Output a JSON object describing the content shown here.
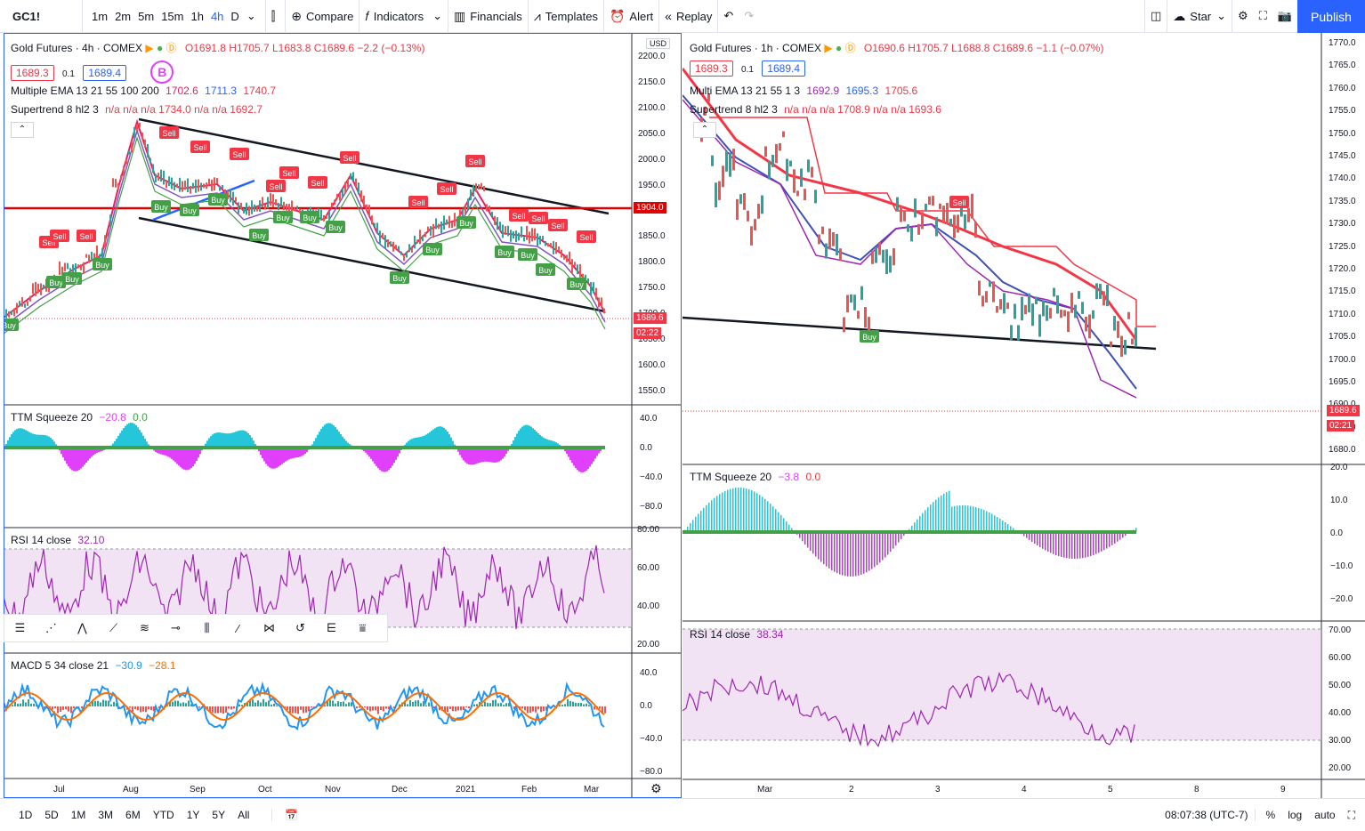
{
  "topbar": {
    "symbol": "GC1!",
    "timeframes": [
      "1m",
      "2m",
      "5m",
      "15m",
      "1h",
      "4h",
      "D"
    ],
    "active_timeframe": "4h",
    "compare_label": "Compare",
    "indicators_label": "Indicators",
    "financials_label": "Financials",
    "templates_label": "Templates",
    "alert_label": "Alert",
    "replay_label": "Replay",
    "star_label": "Star",
    "publish_label": "Publish"
  },
  "left_chart": {
    "title": "Gold Futures · 4h · COMEX",
    "ohlc": "O1691.8 H1705.7 L1683.8 C1689.6 −2.2 (−0.13%)",
    "bid": "1689.3",
    "spread": "0.1",
    "ask": "1689.4",
    "ema_label": "Multiple EMA 13 21 55 100 200",
    "ema_values": [
      "1702.6",
      "1711.3",
      "1740.7"
    ],
    "supertrend_label": "Supertrend 8 hl2 3",
    "supertrend_values": "n/a n/a n/a 1734.0 n/a n/a 1692.7",
    "currency": "USD",
    "price_axis": [
      "2200.0",
      "2150.0",
      "2100.0",
      "2050.0",
      "2000.0",
      "1950.0",
      "1900.0",
      "1850.0",
      "1800.0",
      "1750.0",
      "1700.0",
      "1650.0",
      "1600.0",
      "1550.0"
    ],
    "hline_label": "1904.0",
    "last_price": "1689.6",
    "countdown": "02:22",
    "time_axis": [
      "Jul",
      "Aug",
      "Sep",
      "Oct",
      "Nov",
      "Dec",
      "2021",
      "Feb",
      "Mar"
    ],
    "ttm_label": "TTM Squeeze 20",
    "ttm_values": [
      "−20.8",
      "0.0"
    ],
    "ttm_axis": [
      "40.0",
      "0.0",
      "−40.0",
      "−80.0"
    ],
    "rsi_label": "RSI 14 close",
    "rsi_value": "32.10",
    "rsi_axis": [
      "80.00",
      "60.00",
      "40.00",
      "20.00"
    ],
    "macd_label": "MACD 5 34 close 21",
    "macd_values": [
      "−30.9",
      "−28.1"
    ],
    "macd_axis": [
      "40.0",
      "0.0",
      "−40.0",
      "−80.0"
    ]
  },
  "right_chart": {
    "title": "Gold Futures · 1h · COMEX",
    "ohlc": "O1690.6 H1705.7 L1688.8 C1689.6 −1.1 (−0.07%)",
    "bid": "1689.3",
    "spread": "0.1",
    "ask": "1689.4",
    "ema_label": "Multi EMA 13 21 55 1 3",
    "ema_values": [
      "1692.9",
      "1695.3",
      "1705.6"
    ],
    "supertrend_label": "Supertrend 8 hl2 3",
    "supertrend_values": "n/a n/a n/a 1708.9 n/a n/a 1693.6",
    "price_axis": [
      "1770.0",
      "1765.0",
      "1760.0",
      "1755.0",
      "1750.0",
      "1745.0",
      "1740.0",
      "1735.0",
      "1730.0",
      "1725.0",
      "1720.0",
      "1715.0",
      "1710.0",
      "1705.0",
      "1700.0",
      "1695.0",
      "1690.0",
      "1685.0",
      "1680.0"
    ],
    "last_price": "1689.6",
    "countdown": "02:21",
    "time_axis": [
      "Mar",
      "2",
      "3",
      "4",
      "5",
      "8",
      "9"
    ],
    "ttm_label": "TTM Squeeze 20",
    "ttm_values": [
      "−3.8",
      "0.0"
    ],
    "ttm_axis": [
      "20.0",
      "10.0",
      "0.0",
      "−10.0",
      "−20.0"
    ],
    "rsi_label": "RSI 14 close",
    "rsi_value": "38.34",
    "rsi_axis": [
      "70.00",
      "60.00",
      "50.00",
      "40.00",
      "30.00",
      "20.00"
    ]
  },
  "bottombar": {
    "ranges": [
      "1D",
      "5D",
      "1M",
      "3M",
      "6M",
      "YTD",
      "1Y",
      "5Y",
      "All"
    ],
    "clock": "08:07:38 (UTC-7)",
    "pct_label": "%",
    "log_label": "log",
    "auto_label": "auto"
  },
  "colors": {
    "accent": "#2962ff",
    "sell": "#f23645",
    "buy": "#43a047",
    "rsi_line": "#9c27b0",
    "macd_line": "#2196f3",
    "signal_line": "#ff6d00"
  }
}
